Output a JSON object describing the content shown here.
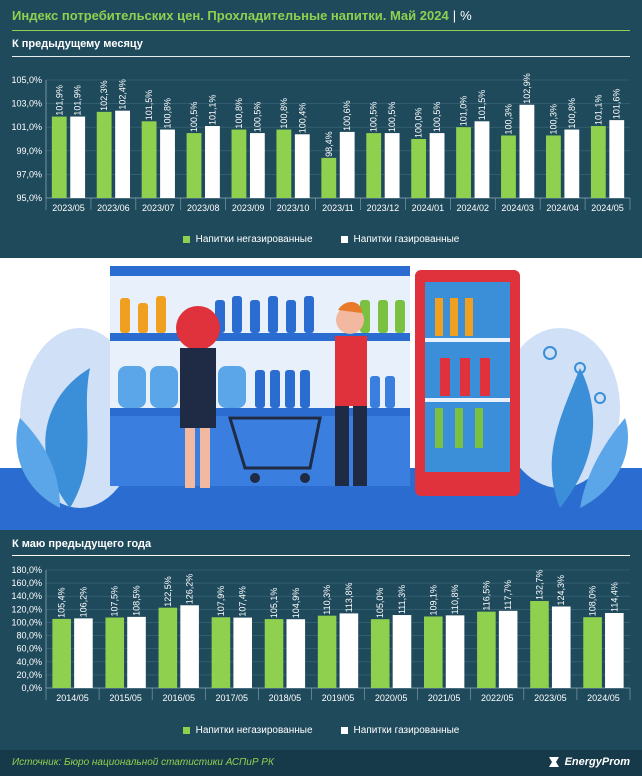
{
  "header": {
    "title": "Индекс потребительских цен. Прохладительные напитки. Май 2024",
    "separator": "|",
    "unit": "%"
  },
  "colors": {
    "non_carbonated": "#8fd14f",
    "carbonated": "#ffffff",
    "background": "#1f4a5c",
    "accent": "#8fd14f"
  },
  "chart_data": [
    {
      "type": "bar",
      "title": "К предыдущему месяцу",
      "categories": [
        "2023/05",
        "2023/06",
        "2023/07",
        "2023/08",
        "2023/09",
        "2023/10",
        "2023/11",
        "2023/12",
        "2024/01",
        "2024/02",
        "2024/03",
        "2024/04",
        "2024/05"
      ],
      "series": [
        {
          "name": "Напитки негазированные",
          "values": [
            101.9,
            102.3,
            101.5,
            100.5,
            100.8,
            100.8,
            98.4,
            100.5,
            100.0,
            101.0,
            100.3,
            100.3,
            101.1
          ],
          "labels": [
            "101,9%",
            "102,3%",
            "101,5%",
            "100,5%",
            "100,8%",
            "100,8%",
            "98,4%",
            "100,5%",
            "100,0%",
            "101,0%",
            "100,3%",
            "100,3%",
            "101,1%"
          ]
        },
        {
          "name": "Напитки газированные",
          "values": [
            101.9,
            102.4,
            100.8,
            101.1,
            100.5,
            100.4,
            100.6,
            100.5,
            100.5,
            101.5,
            102.9,
            100.8,
            101.6
          ],
          "labels": [
            "101,9%",
            "102,4%",
            "100,8%",
            "101,1%",
            "100,5%",
            "100,4%",
            "100,6%",
            "100,5%",
            "100,5%",
            "101,5%",
            "102,9%",
            "100,8%",
            "101,6%"
          ]
        }
      ],
      "ylim": [
        95,
        105
      ],
      "yticks": [
        95,
        97,
        99,
        101,
        103,
        105
      ],
      "ytick_labels": [
        "95,0%",
        "97,0%",
        "99,0%",
        "101,0%",
        "103,0%",
        "105,0%"
      ],
      "legend": "bottom"
    },
    {
      "type": "bar",
      "title": "К маю предыдущего года",
      "categories": [
        "2014/05",
        "2015/05",
        "2016/05",
        "2017/05",
        "2018/05",
        "2019/05",
        "2020/05",
        "2021/05",
        "2022/05",
        "2023/05",
        "2024/05"
      ],
      "series": [
        {
          "name": "Напитки негазированные",
          "values": [
            105.4,
            107.5,
            122.5,
            107.9,
            105.1,
            110.3,
            105.0,
            109.1,
            116.5,
            132.7,
            108.0
          ],
          "labels": [
            "105,4%",
            "107,5%",
            "122,5%",
            "107,9%",
            "105,1%",
            "110,3%",
            "105,0%",
            "109,1%",
            "116,5%",
            "132,7%",
            "108,0%"
          ]
        },
        {
          "name": "Напитки газированные",
          "values": [
            106.2,
            108.5,
            126.2,
            107.4,
            104.9,
            113.8,
            111.3,
            110.8,
            117.7,
            124.3,
            114.4
          ],
          "labels": [
            "106,2%",
            "108,5%",
            "126,2%",
            "107,4%",
            "104,9%",
            "113,8%",
            "111,3%",
            "110,8%",
            "117,7%",
            "124,3%",
            "114,4%"
          ]
        }
      ],
      "ylim": [
        0,
        180
      ],
      "yticks": [
        0,
        20,
        40,
        60,
        80,
        100,
        120,
        140,
        160,
        180
      ],
      "ytick_labels": [
        "0,0%",
        "20,0%",
        "40,0%",
        "60,0%",
        "80,0%",
        "100,0%",
        "120,0%",
        "140,0%",
        "160,0%",
        "180,0%"
      ],
      "legend": "bottom"
    }
  ],
  "illustration": {
    "icon": "supermarket-drinks-shelf-illustration"
  },
  "footer": {
    "source": "Источник: Бюро национальной статистики АСПиР РК",
    "logo": "EnergyProm"
  }
}
